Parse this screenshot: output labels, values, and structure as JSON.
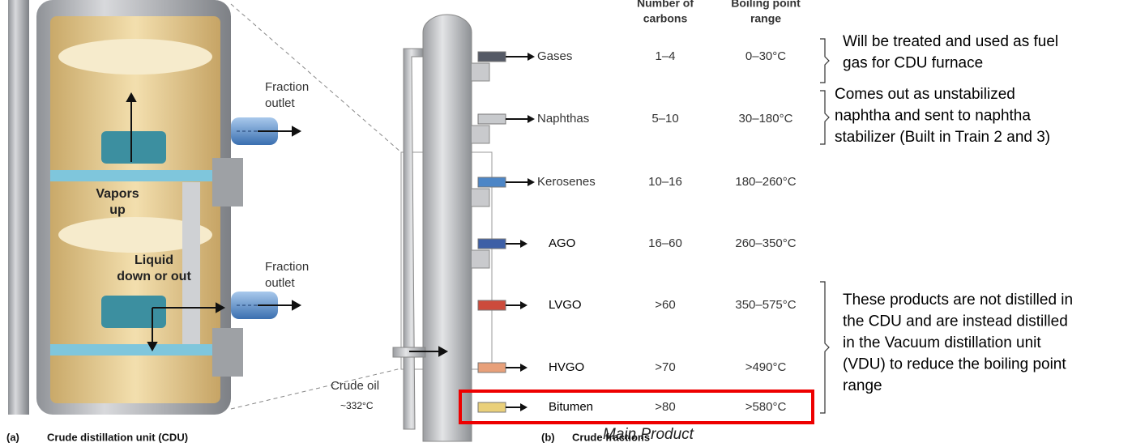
{
  "panel_a": {
    "label": "(a)",
    "caption": "Crude distillation unit (CDU)",
    "outlet_labels": [
      {
        "lines": [
          "Fraction",
          "outlet"
        ]
      },
      {
        "lines": [
          "Fraction",
          "outlet"
        ]
      }
    ],
    "vapors": {
      "lines": [
        "Vapors",
        "up"
      ]
    },
    "liquid": {
      "lines": [
        "Liquid",
        "down or out"
      ]
    }
  },
  "panel_b": {
    "label": "(b)",
    "caption": "Crude fractions",
    "headers": [
      {
        "lines": [
          "Number of",
          "carbons"
        ]
      },
      {
        "lines": [
          "Boiling point",
          "range"
        ]
      }
    ],
    "rows": [
      {
        "name": "Gases",
        "carbons": "1–4",
        "range": "0–30°C"
      },
      {
        "name": "Naphthas",
        "carbons": "5–10",
        "range": "30–180°C"
      },
      {
        "name": "Kerosenes",
        "carbons": "10–16",
        "range": "180–260°C"
      },
      {
        "name": "AGO",
        "carbons": "16–60",
        "range": "260–350°C"
      },
      {
        "name": "LVGO",
        "carbons": ">60",
        "range": "350–575°C"
      },
      {
        "name": "HVGO",
        "carbons": ">70",
        "range": ">490°C"
      },
      {
        "name": "Bitumen",
        "carbons": ">80",
        "range": ">580°C"
      }
    ],
    "crude_oil": "Crude oil",
    "crude_temp": "~332°C",
    "main_product": "Main Product"
  },
  "notes": [
    {
      "lines": [
        "Will be treated and used as fuel",
        "gas for CDU furnace"
      ]
    },
    {
      "lines": [
        "Comes out as unstabilized",
        "naphtha and sent to naphtha",
        "stabilizer (Built in Train 2 and 3)"
      ]
    },
    {
      "lines": [
        "These products are not distilled in",
        "the CDU and are instead distilled",
        "in the Vacuum distillation unit",
        "(VDU) to reduce the boiling point",
        "range"
      ]
    }
  ]
}
